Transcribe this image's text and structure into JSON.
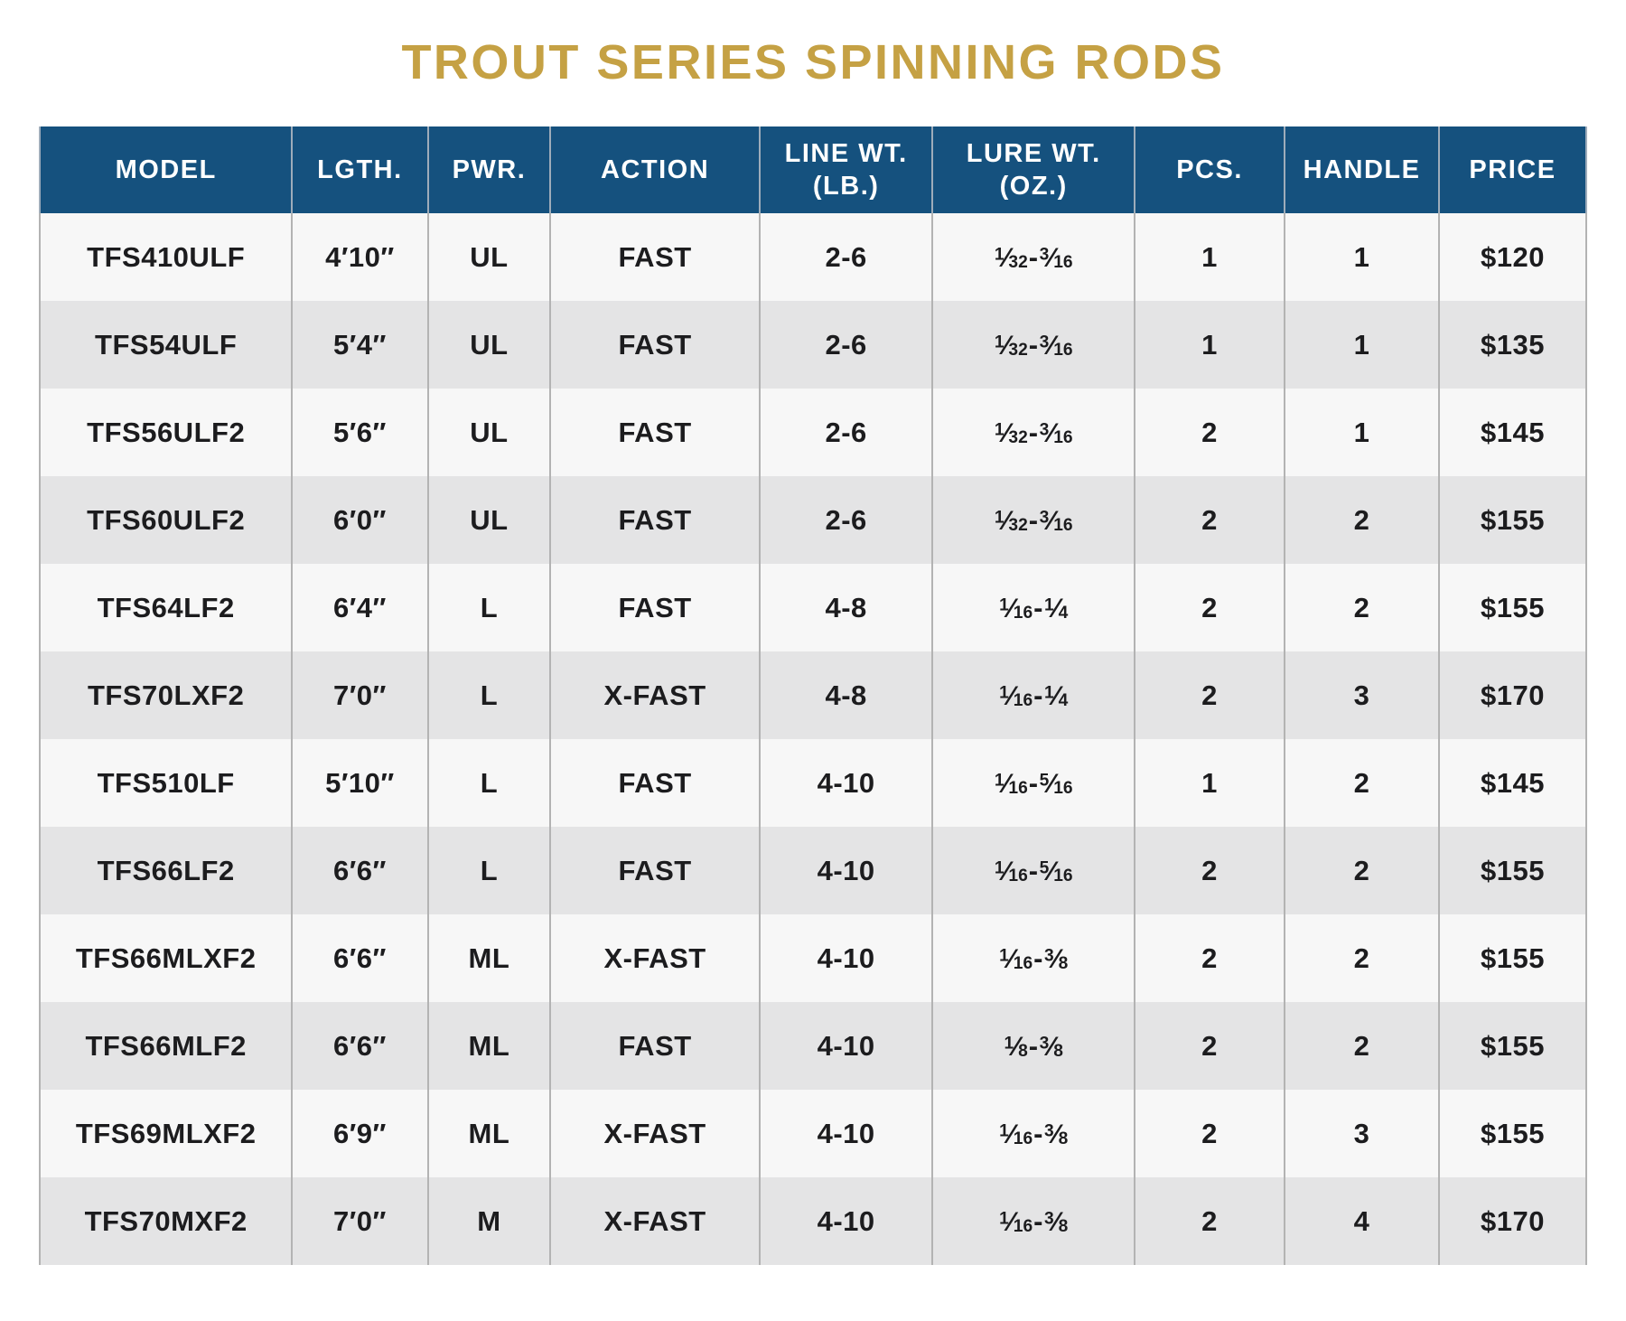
{
  "title": "TROUT SERIES SPINNING RODS",
  "colors": {
    "title_gold": "#C5A144",
    "header_bg": "#15517E",
    "header_text": "#FFFFFF",
    "row_odd": "#F7F7F7",
    "row_even": "#E4E4E5",
    "grid_line": "#B3B3B3",
    "body_text": "#1C1C1E"
  },
  "table": {
    "columns": [
      {
        "key": "model",
        "label_lines": [
          "MODEL"
        ],
        "width": "16.7%"
      },
      {
        "key": "length",
        "label_lines": [
          "LGTH."
        ],
        "width": "8.6%"
      },
      {
        "key": "power",
        "label_lines": [
          "PWR."
        ],
        "width": "7.7%"
      },
      {
        "key": "action",
        "label_lines": [
          "ACTION"
        ],
        "width": "13.7%"
      },
      {
        "key": "line_wt",
        "label_lines": [
          "LINE WT.",
          "(LB.)"
        ],
        "width": "11.2%"
      },
      {
        "key": "lure_wt",
        "label_lines": [
          "LURE WT.",
          "(OZ.)"
        ],
        "width": "13.2%"
      },
      {
        "key": "pcs",
        "label_lines": [
          "PCS."
        ],
        "width": "9.6%"
      },
      {
        "key": "handle",
        "label_lines": [
          "HANDLE"
        ],
        "width": "9.9%"
      },
      {
        "key": "price",
        "label_lines": [
          "PRICE"
        ],
        "width": "9.4%"
      }
    ],
    "rows": [
      {
        "model": "TFS410ULF",
        "length": "4′10″",
        "power": "UL",
        "action": "FAST",
        "line_wt": "2-6",
        "lure_wt": [
          {
            "n": "1",
            "d": "32"
          },
          {
            "n": "3",
            "d": "16"
          }
        ],
        "pcs": "1",
        "handle": "1",
        "price": "$120"
      },
      {
        "model": "TFS54ULF",
        "length": "5′4″",
        "power": "UL",
        "action": "FAST",
        "line_wt": "2-6",
        "lure_wt": [
          {
            "n": "1",
            "d": "32"
          },
          {
            "n": "3",
            "d": "16"
          }
        ],
        "pcs": "1",
        "handle": "1",
        "price": "$135"
      },
      {
        "model": "TFS56ULF2",
        "length": "5′6″",
        "power": "UL",
        "action": "FAST",
        "line_wt": "2-6",
        "lure_wt": [
          {
            "n": "1",
            "d": "32"
          },
          {
            "n": "3",
            "d": "16"
          }
        ],
        "pcs": "2",
        "handle": "1",
        "price": "$145"
      },
      {
        "model": "TFS60ULF2",
        "length": "6′0″",
        "power": "UL",
        "action": "FAST",
        "line_wt": "2-6",
        "lure_wt": [
          {
            "n": "1",
            "d": "32"
          },
          {
            "n": "3",
            "d": "16"
          }
        ],
        "pcs": "2",
        "handle": "2",
        "price": "$155"
      },
      {
        "model": "TFS64LF2",
        "length": "6′4″",
        "power": "L",
        "action": "FAST",
        "line_wt": "4-8",
        "lure_wt": [
          {
            "n": "1",
            "d": "16"
          },
          {
            "n": "1",
            "d": "4"
          }
        ],
        "pcs": "2",
        "handle": "2",
        "price": "$155"
      },
      {
        "model": "TFS70LXF2",
        "length": "7′0″",
        "power": "L",
        "action": "X-FAST",
        "line_wt": "4-8",
        "lure_wt": [
          {
            "n": "1",
            "d": "16"
          },
          {
            "n": "1",
            "d": "4"
          }
        ],
        "pcs": "2",
        "handle": "3",
        "price": "$170"
      },
      {
        "model": "TFS510LF",
        "length": "5′10″",
        "power": "L",
        "action": "FAST",
        "line_wt": "4-10",
        "lure_wt": [
          {
            "n": "1",
            "d": "16"
          },
          {
            "n": "5",
            "d": "16"
          }
        ],
        "pcs": "1",
        "handle": "2",
        "price": "$145"
      },
      {
        "model": "TFS66LF2",
        "length": "6′6″",
        "power": "L",
        "action": "FAST",
        "line_wt": "4-10",
        "lure_wt": [
          {
            "n": "1",
            "d": "16"
          },
          {
            "n": "5",
            "d": "16"
          }
        ],
        "pcs": "2",
        "handle": "2",
        "price": "$155"
      },
      {
        "model": "TFS66MLXF2",
        "length": "6′6″",
        "power": "ML",
        "action": "X-FAST",
        "line_wt": "4-10",
        "lure_wt": [
          {
            "n": "1",
            "d": "16"
          },
          {
            "n": "3",
            "d": "8"
          }
        ],
        "pcs": "2",
        "handle": "2",
        "price": "$155"
      },
      {
        "model": "TFS66MLF2",
        "length": "6′6″",
        "power": "ML",
        "action": "FAST",
        "line_wt": "4-10",
        "lure_wt": [
          {
            "n": "1",
            "d": "8"
          },
          {
            "n": "3",
            "d": "8"
          }
        ],
        "pcs": "2",
        "handle": "2",
        "price": "$155"
      },
      {
        "model": "TFS69MLXF2",
        "length": "6′9″",
        "power": "ML",
        "action": "X-FAST",
        "line_wt": "4-10",
        "lure_wt": [
          {
            "n": "1",
            "d": "16"
          },
          {
            "n": "3",
            "d": "8"
          }
        ],
        "pcs": "2",
        "handle": "3",
        "price": "$155"
      },
      {
        "model": "TFS70MXF2",
        "length": "7′0″",
        "power": "M",
        "action": "X-FAST",
        "line_wt": "4-10",
        "lure_wt": [
          {
            "n": "1",
            "d": "16"
          },
          {
            "n": "3",
            "d": "8"
          }
        ],
        "pcs": "2",
        "handle": "4",
        "price": "$170"
      }
    ]
  }
}
